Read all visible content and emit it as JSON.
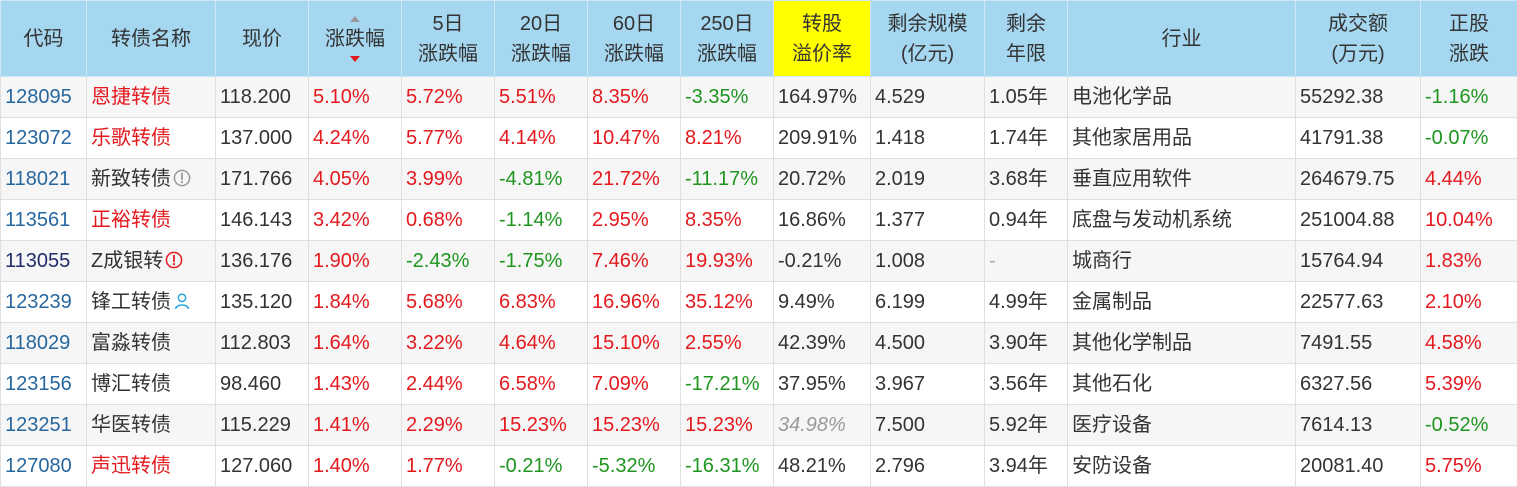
{
  "colors": {
    "up": "#e4191e",
    "down": "#1e951e",
    "text": "#333333",
    "link": "#27679f",
    "header_bg": "#a6d7f1",
    "sort_active": "#e4191e",
    "sort_inactive": "#9a9a9a"
  },
  "table": {
    "columns": [
      {
        "lines": [
          "代码"
        ]
      },
      {
        "lines": [
          "转债名称"
        ]
      },
      {
        "lines": [
          "现价"
        ]
      },
      {
        "lines": [
          "涨跌幅"
        ],
        "sort_icon": "sort-desc-icon"
      },
      {
        "lines": [
          "5日",
          "涨跌幅"
        ]
      },
      {
        "lines": [
          "20日",
          "涨跌幅"
        ]
      },
      {
        "lines": [
          "60日",
          "涨跌幅"
        ]
      },
      {
        "lines": [
          "250日",
          "涨跌幅"
        ]
      },
      {
        "lines": [
          "转股",
          "溢价率"
        ],
        "bg": "#ffff00"
      },
      {
        "lines": [
          "剩余规模",
          "(亿元)"
        ]
      },
      {
        "lines": [
          "剩余",
          "年限"
        ]
      },
      {
        "lines": [
          "行业"
        ]
      },
      {
        "lines": [
          "成交额",
          "(万元)"
        ]
      },
      {
        "lines": [
          "正股",
          "涨跌"
        ]
      }
    ],
    "rows": [
      {
        "code": "128095",
        "code_color": "#27679f",
        "name": "恩捷转债",
        "name_color": "#e4191e",
        "price": "118.200",
        "chg": "5.10%",
        "chg5": "5.72%",
        "chg20": "5.51%",
        "chg60": "8.35%",
        "chg250": "-3.35%",
        "premium": "164.97%",
        "size": "4.529",
        "years": "1.05年",
        "industry": "电池化学品",
        "volume": "55292.38",
        "stock_chg": "-1.16%"
      },
      {
        "code": "123072",
        "code_color": "#27679f",
        "name": "乐歌转债",
        "name_color": "#e4191e",
        "price": "137.000",
        "chg": "4.24%",
        "chg5": "5.77%",
        "chg20": "4.14%",
        "chg60": "10.47%",
        "chg250": "8.21%",
        "premium": "209.91%",
        "size": "1.418",
        "years": "1.74年",
        "industry": "其他家居用品",
        "volume": "41791.38",
        "stock_chg": "-0.07%"
      },
      {
        "code": "118021",
        "code_color": "#27679f",
        "name": "新致转债",
        "name_color": "#333333",
        "icon": {
          "name": "alert-circle-icon",
          "color": "#9a9a9a"
        },
        "price": "171.766",
        "chg": "4.05%",
        "chg5": "3.99%",
        "chg20": "-4.81%",
        "chg60": "21.72%",
        "chg250": "-11.17%",
        "premium": "20.72%",
        "size": "2.019",
        "years": "3.68年",
        "industry": "垂直应用软件",
        "volume": "264679.75",
        "stock_chg": "4.44%"
      },
      {
        "code": "113561",
        "code_color": "#27679f",
        "name": "正裕转债",
        "name_color": "#e4191e",
        "price": "146.143",
        "chg": "3.42%",
        "chg5": "0.68%",
        "chg20": "-1.14%",
        "chg60": "2.95%",
        "chg250": "8.35%",
        "premium": "16.86%",
        "size": "1.377",
        "years": "0.94年",
        "industry": "底盘与发动机系统",
        "volume": "251004.88",
        "stock_chg": "10.04%"
      },
      {
        "code": "113055",
        "code_color": "#1f2d6b",
        "name": "Z成银转",
        "name_color": "#333333",
        "icon": {
          "name": "alert-circle-icon",
          "color": "#e4191e"
        },
        "price": "136.176",
        "chg": "1.90%",
        "chg5": "-2.43%",
        "chg20": "-1.75%",
        "chg60": "7.46%",
        "chg250": "19.93%",
        "premium": "-0.21%",
        "size": "1.008",
        "years": "-",
        "years_color": "#aaaaaa",
        "industry": "城商行",
        "volume": "15764.94",
        "stock_chg": "1.83%"
      },
      {
        "code": "123239",
        "code_color": "#27679f",
        "name": "锋工转债",
        "name_color": "#333333",
        "icon": {
          "name": "user-icon",
          "color": "#2aa8df"
        },
        "price": "135.120",
        "chg": "1.84%",
        "chg5": "5.68%",
        "chg20": "6.83%",
        "chg60": "16.96%",
        "chg250": "35.12%",
        "premium": "9.49%",
        "size": "6.199",
        "years": "4.99年",
        "industry": "金属制品",
        "volume": "22577.63",
        "stock_chg": "2.10%"
      },
      {
        "code": "118029",
        "code_color": "#27679f",
        "name": "富淼转债",
        "name_color": "#333333",
        "price": "112.803",
        "chg": "1.64%",
        "chg5": "3.22%",
        "chg20": "4.64%",
        "chg60": "15.10%",
        "chg250": "2.55%",
        "premium": "42.39%",
        "size": "4.500",
        "years": "3.90年",
        "industry": "其他化学制品",
        "volume": "7491.55",
        "stock_chg": "4.58%"
      },
      {
        "code": "123156",
        "code_color": "#27679f",
        "name": "博汇转债",
        "name_color": "#333333",
        "price": "98.460",
        "chg": "1.43%",
        "chg5": "2.44%",
        "chg20": "6.58%",
        "chg60": "7.09%",
        "chg250": "-17.21%",
        "premium": "37.95%",
        "size": "3.967",
        "years": "3.56年",
        "industry": "其他石化",
        "volume": "6327.56",
        "stock_chg": "5.39%"
      },
      {
        "code": "123251",
        "code_color": "#27679f",
        "name": "华医转债",
        "name_color": "#333333",
        "price": "115.229",
        "chg": "1.41%",
        "chg5": "2.29%",
        "chg20": "15.23%",
        "chg60": "15.23%",
        "chg250": "15.23%",
        "premium": "34.98%",
        "premium_color": "#9a9a9a",
        "premium_italic": true,
        "size": "7.500",
        "years": "5.92年",
        "industry": "医疗设备",
        "volume": "7614.13",
        "stock_chg": "-0.52%"
      },
      {
        "code": "127080",
        "code_color": "#27679f",
        "name": "声迅转债",
        "name_color": "#e4191e",
        "price": "127.060",
        "chg": "1.40%",
        "chg5": "1.77%",
        "chg20": "-0.21%",
        "chg60": "-5.32%",
        "chg250": "-16.31%",
        "premium": "48.21%",
        "size": "2.796",
        "years": "3.94年",
        "industry": "安防设备",
        "volume": "20081.40",
        "stock_chg": "5.75%"
      }
    ]
  }
}
